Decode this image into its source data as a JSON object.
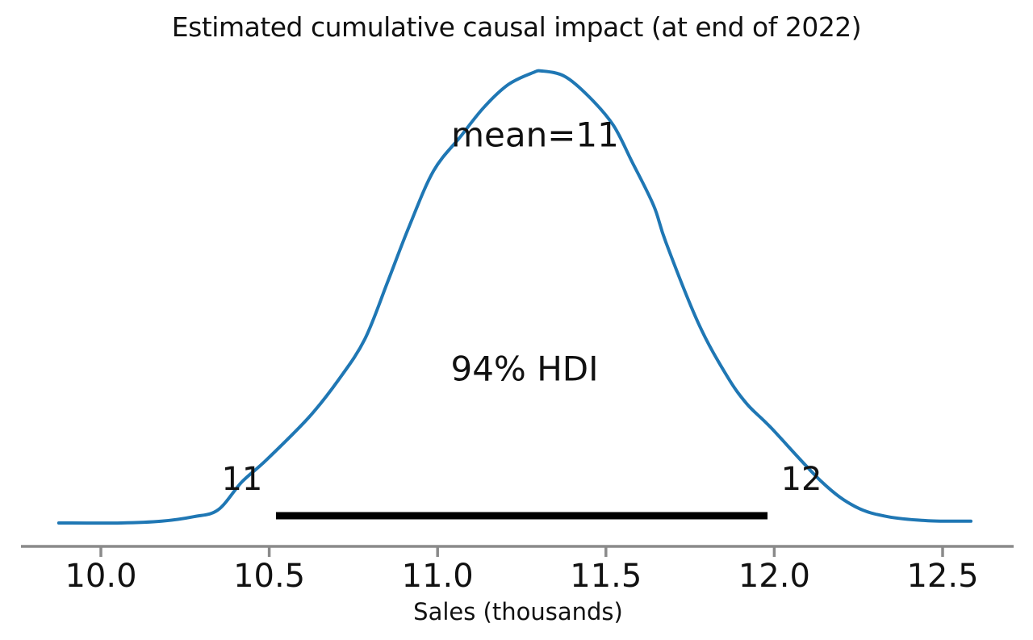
{
  "chart_data": {
    "type": "line",
    "kind": "kde-posterior-density",
    "title": "Estimated cumulative causal impact (at end of 2022)",
    "xlabel": "Sales (thousands)",
    "ylabel": "",
    "x_tick_labels": [
      "10.0",
      "10.5",
      "11.0",
      "11.5",
      "12.0",
      "12.5"
    ],
    "x_tick_values": [
      10.0,
      10.5,
      11.0,
      11.5,
      12.0,
      12.5
    ],
    "xlim": [
      9.76,
      12.77
    ],
    "grid": false,
    "legend": "none",
    "curve": {
      "x": [
        9.875,
        10.06,
        10.18,
        10.276,
        10.348,
        10.419,
        10.491,
        10.618,
        10.707,
        10.784,
        10.851,
        10.916,
        10.988,
        11.067,
        11.138,
        11.21,
        11.282,
        11.311,
        11.378,
        11.45,
        11.522,
        11.577,
        11.642,
        11.678,
        11.774,
        11.858,
        11.918,
        11.99,
        12.141,
        12.241,
        12.337,
        12.457,
        12.584
      ],
      "density": [
        0.0,
        0.0,
        0.004,
        0.014,
        0.029,
        0.091,
        0.139,
        0.234,
        0.318,
        0.407,
        0.532,
        0.657,
        0.779,
        0.854,
        0.92,
        0.97,
        0.996,
        1.0,
        0.988,
        0.943,
        0.88,
        0.8,
        0.702,
        0.621,
        0.443,
        0.327,
        0.264,
        0.211,
        0.091,
        0.036,
        0.014,
        0.005,
        0.004
      ]
    },
    "mean": {
      "label": "mean=11",
      "value_at_peak": 11.31
    },
    "hdi": {
      "label": "94% HDI",
      "lower_label": "11",
      "upper_label": "12",
      "interval": [
        10.52,
        11.98
      ]
    },
    "colors": {
      "curve": "#1f77b4",
      "hdi_bar": "#000000",
      "axis": "#8a8a8a",
      "text": "#111111"
    }
  }
}
